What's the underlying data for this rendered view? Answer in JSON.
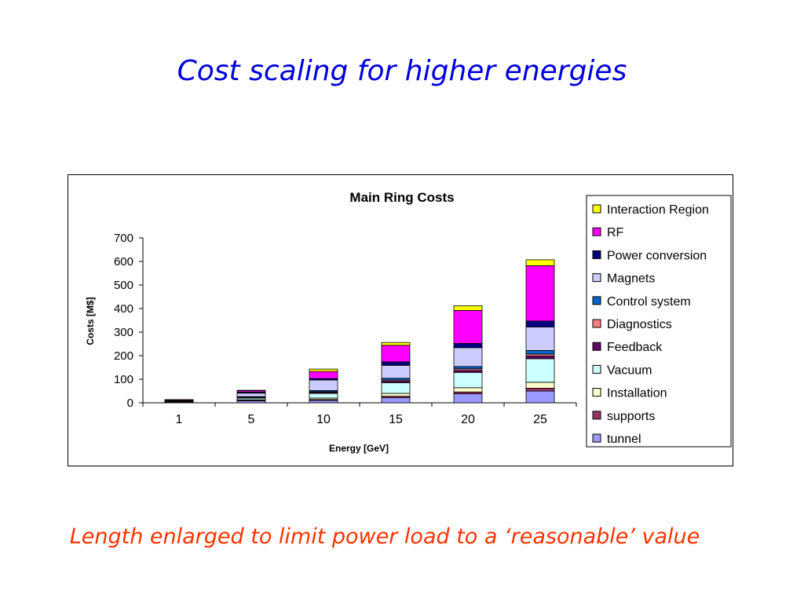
{
  "slide": {
    "title": "Cost scaling for higher energies",
    "subtitle": "Length enlarged to limit power load to a ‘reasonable’ value"
  },
  "chart_data": {
    "type": "bar",
    "stacked": true,
    "title": "Main Ring Costs",
    "xlabel": "Energy [GeV]",
    "ylabel": "Costs [M$]",
    "ylim": [
      0,
      700
    ],
    "yticks": [
      0,
      100,
      200,
      300,
      400,
      500,
      600,
      700
    ],
    "categories": [
      "1",
      "5",
      "10",
      "15",
      "20",
      "25"
    ],
    "grid": false,
    "legend_position": "right",
    "series": [
      {
        "name": "tunnel",
        "color": "#9999ff",
        "values": [
          3,
          8,
          10,
          22,
          38,
          50
        ]
      },
      {
        "name": "supports",
        "color": "#993366",
        "values": [
          0.5,
          2,
          4,
          6,
          8,
          12
        ]
      },
      {
        "name": "Installation",
        "color": "#ffffcc",
        "values": [
          1,
          3,
          6,
          12,
          18,
          25
        ]
      },
      {
        "name": "Vacuum",
        "color": "#ccffff",
        "values": [
          2,
          7,
          20,
          45,
          65,
          100
        ]
      },
      {
        "name": "Feedback",
        "color": "#660066",
        "values": [
          0.5,
          2,
          4,
          6,
          8,
          12
        ]
      },
      {
        "name": "Diagnostics",
        "color": "#ff8080",
        "values": [
          0.5,
          2,
          3,
          5,
          7,
          8
        ]
      },
      {
        "name": "Control system",
        "color": "#0066cc",
        "values": [
          0.5,
          2,
          5,
          8,
          10,
          15
        ]
      },
      {
        "name": "Magnets",
        "color": "#ccccff",
        "values": [
          1,
          15,
          45,
          55,
          80,
          100
        ]
      },
      {
        "name": "Power conversion",
        "color": "#000080",
        "values": [
          1,
          4,
          6,
          15,
          18,
          25
        ]
      },
      {
        "name": "RF",
        "color": "#ff00ff",
        "values": [
          3,
          6,
          30,
          70,
          140,
          235
        ]
      },
      {
        "name": "Interaction Region",
        "color": "#ffff00",
        "values": [
          0.5,
          2,
          10,
          12,
          20,
          25
        ]
      }
    ]
  }
}
